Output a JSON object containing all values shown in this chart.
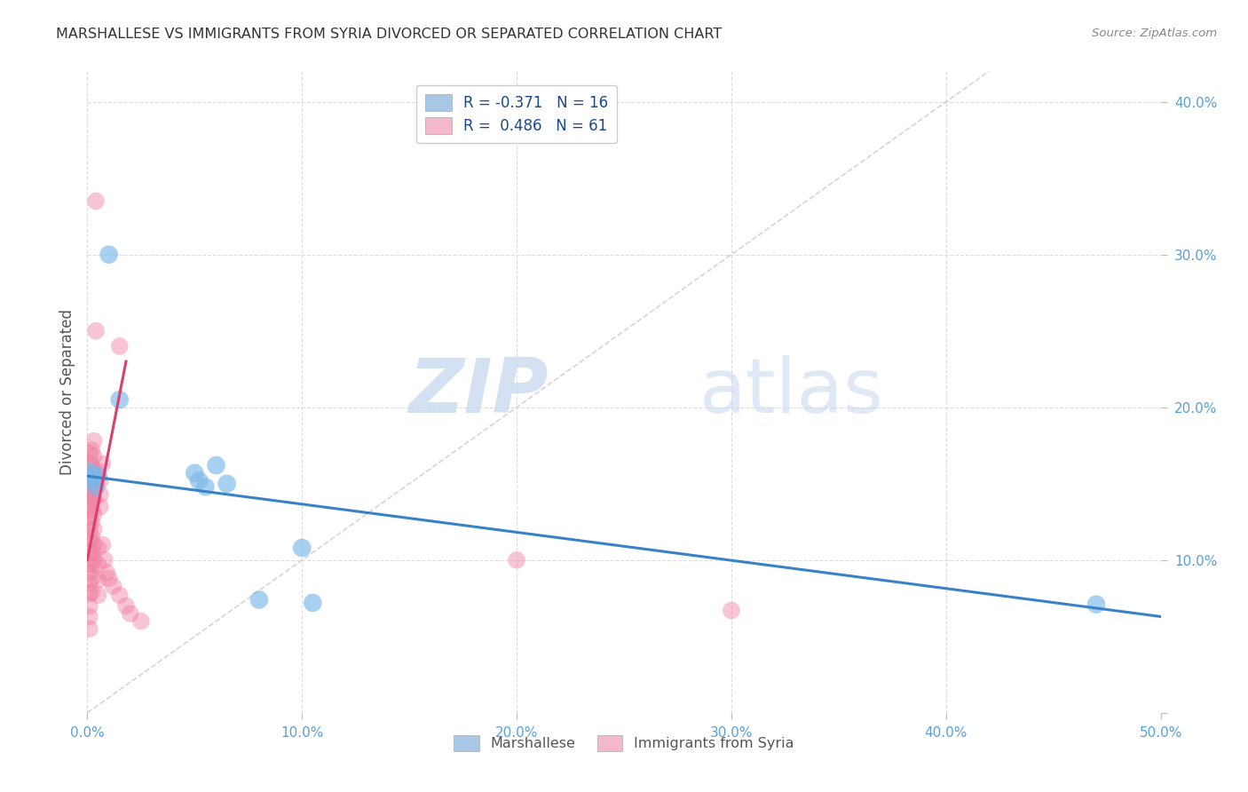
{
  "title": "MARSHALLESE VS IMMIGRANTS FROM SYRIA DIVORCED OR SEPARATED CORRELATION CHART",
  "source": "Source: ZipAtlas.com",
  "ylabel": "Divorced or Separated",
  "xlim": [
    0,
    0.5
  ],
  "ylim": [
    0,
    0.42
  ],
  "xticks": [
    0.0,
    0.1,
    0.2,
    0.3,
    0.4,
    0.5
  ],
  "yticks": [
    0.0,
    0.1,
    0.2,
    0.3,
    0.4
  ],
  "xtick_labels": [
    "0.0%",
    "10.0%",
    "20.0%",
    "30.0%",
    "40.0%",
    "50.0%"
  ],
  "ytick_labels": [
    "",
    "10.0%",
    "20.0%",
    "30.0%",
    "40.0%"
  ],
  "legend_entries": [
    {
      "label": "R = -0.371   N = 16",
      "color": "#a8c8e8"
    },
    {
      "label": "R =  0.486   N = 61",
      "color": "#f4b8cc"
    }
  ],
  "bottom_legend": [
    {
      "label": "Marshallese",
      "color": "#a8c8e8"
    },
    {
      "label": "Immigrants from Syria",
      "color": "#f4b8cc"
    }
  ],
  "watermark_zip": "ZIP",
  "watermark_atlas": "atlas",
  "blue_color": "#7ab8e8",
  "pink_color": "#f080a0",
  "blue_line_color": "#3a82c8",
  "pink_line_color": "#d84070",
  "diag_line_color": "#d0c8c8",
  "marshallese_points": [
    [
      0.001,
      0.158
    ],
    [
      0.002,
      0.155
    ],
    [
      0.003,
      0.152
    ],
    [
      0.004,
      0.148
    ],
    [
      0.005,
      0.155
    ],
    [
      0.01,
      0.3
    ],
    [
      0.015,
      0.205
    ],
    [
      0.05,
      0.157
    ],
    [
      0.052,
      0.152
    ],
    [
      0.055,
      0.148
    ],
    [
      0.06,
      0.162
    ],
    [
      0.065,
      0.15
    ],
    [
      0.08,
      0.074
    ],
    [
      0.1,
      0.108
    ],
    [
      0.105,
      0.072
    ],
    [
      0.47,
      0.071
    ]
  ],
  "syria_points": [
    [
      0.001,
      0.17
    ],
    [
      0.001,
      0.163
    ],
    [
      0.001,
      0.155
    ],
    [
      0.001,
      0.15
    ],
    [
      0.001,
      0.145
    ],
    [
      0.001,
      0.14
    ],
    [
      0.001,
      0.135
    ],
    [
      0.001,
      0.128
    ],
    [
      0.001,
      0.12
    ],
    [
      0.001,
      0.113
    ],
    [
      0.001,
      0.105
    ],
    [
      0.001,
      0.098
    ],
    [
      0.001,
      0.092
    ],
    [
      0.001,
      0.085
    ],
    [
      0.001,
      0.078
    ],
    [
      0.001,
      0.07
    ],
    [
      0.001,
      0.063
    ],
    [
      0.001,
      0.055
    ],
    [
      0.002,
      0.172
    ],
    [
      0.002,
      0.162
    ],
    [
      0.002,
      0.152
    ],
    [
      0.002,
      0.143
    ],
    [
      0.002,
      0.133
    ],
    [
      0.002,
      0.125
    ],
    [
      0.002,
      0.115
    ],
    [
      0.002,
      0.105
    ],
    [
      0.002,
      0.097
    ],
    [
      0.002,
      0.088
    ],
    [
      0.002,
      0.079
    ],
    [
      0.003,
      0.178
    ],
    [
      0.003,
      0.168
    ],
    [
      0.003,
      0.158
    ],
    [
      0.003,
      0.15
    ],
    [
      0.003,
      0.14
    ],
    [
      0.003,
      0.13
    ],
    [
      0.003,
      0.12
    ],
    [
      0.003,
      0.11
    ],
    [
      0.003,
      0.1
    ],
    [
      0.004,
      0.335
    ],
    [
      0.004,
      0.25
    ],
    [
      0.005,
      0.158
    ],
    [
      0.005,
      0.108
    ],
    [
      0.005,
      0.097
    ],
    [
      0.005,
      0.087
    ],
    [
      0.005,
      0.077
    ],
    [
      0.006,
      0.152
    ],
    [
      0.006,
      0.143
    ],
    [
      0.006,
      0.135
    ],
    [
      0.007,
      0.163
    ],
    [
      0.007,
      0.11
    ],
    [
      0.008,
      0.1
    ],
    [
      0.009,
      0.092
    ],
    [
      0.01,
      0.088
    ],
    [
      0.012,
      0.083
    ],
    [
      0.015,
      0.077
    ],
    [
      0.018,
      0.07
    ],
    [
      0.02,
      0.065
    ],
    [
      0.025,
      0.06
    ],
    [
      0.2,
      0.1
    ],
    [
      0.3,
      0.067
    ],
    [
      0.015,
      0.24
    ]
  ]
}
